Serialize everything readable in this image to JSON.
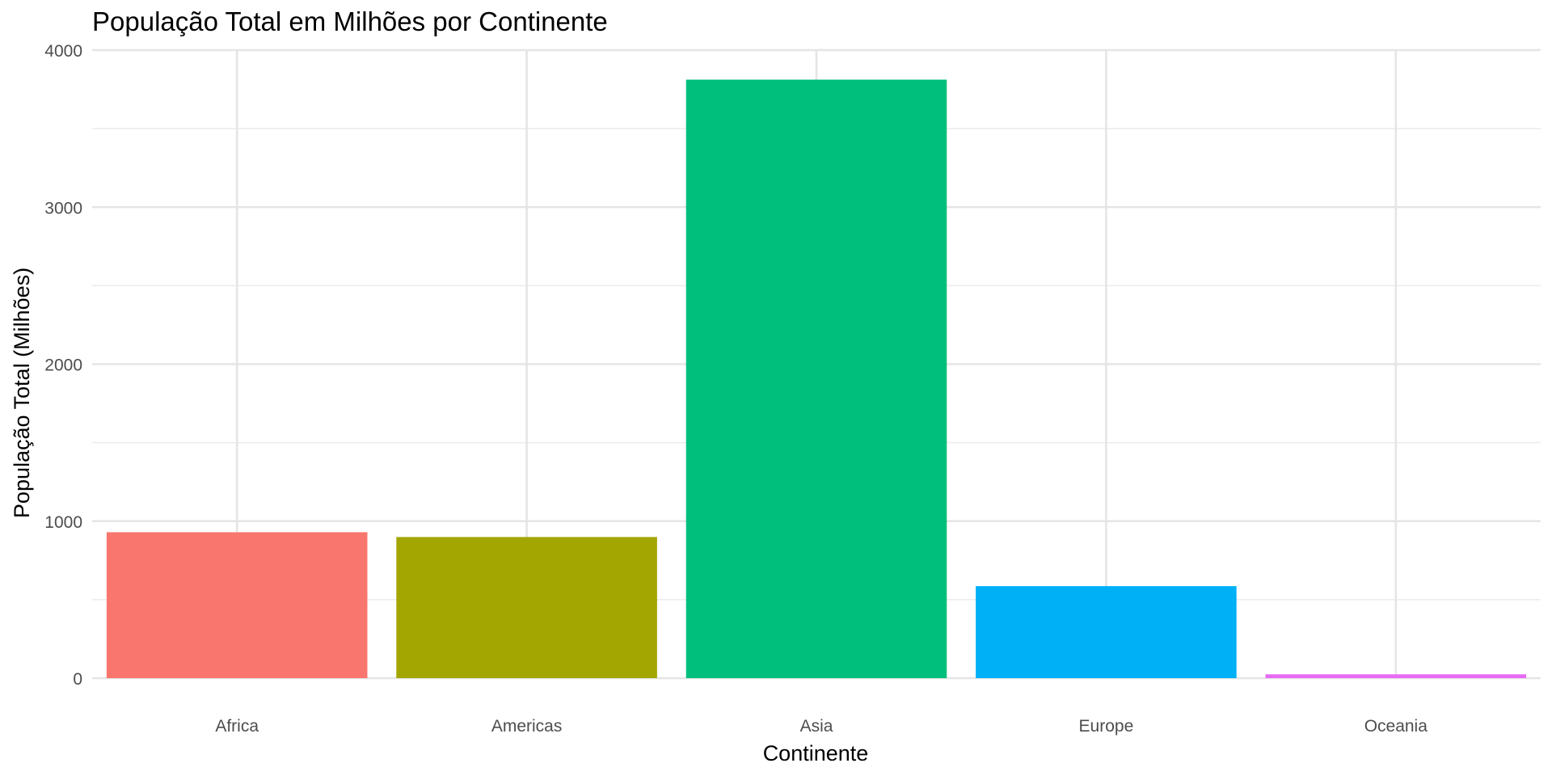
{
  "chart_data": {
    "type": "bar",
    "title": "População Total em Milhões por Continente",
    "xlabel": "Continente",
    "ylabel": "População Total (Milhões)",
    "categories": [
      "Africa",
      "Americas",
      "Asia",
      "Europe",
      "Oceania"
    ],
    "values": [
      929.5,
      898.9,
      3811.9,
      586.1,
      24.5
    ],
    "colors": [
      "#F8766D",
      "#A3A500",
      "#00BF7D",
      "#00B0F6",
      "#E76BF3"
    ],
    "ylim": [
      0,
      4000
    ],
    "yticks": [
      0,
      1000,
      2000,
      3000,
      4000
    ],
    "grid": true,
    "legend": "none"
  }
}
